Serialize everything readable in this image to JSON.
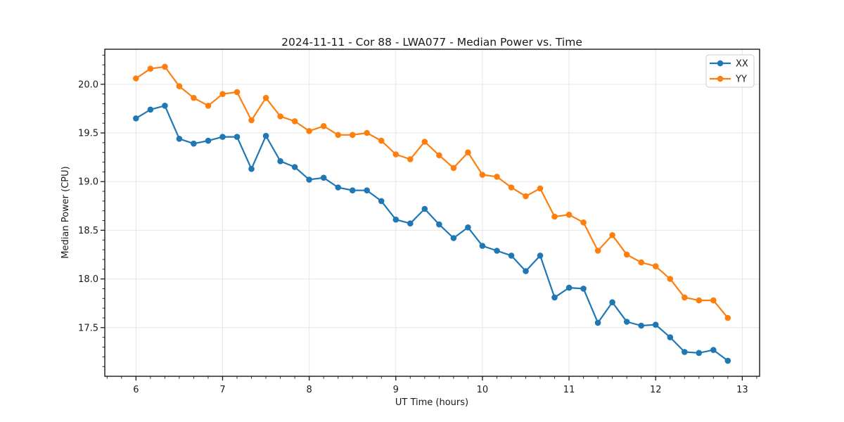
{
  "chart_data": {
    "type": "line",
    "title": "2024-11-11 - Cor 88 - LWA077 - Median Power vs. Time",
    "xlabel": "UT Time (hours)",
    "ylabel": "Median Power (CPU)",
    "legend_position": "upper right",
    "grid": true,
    "xlim": [
      5.64,
      13.2
    ],
    "ylim": [
      17.0,
      20.36
    ],
    "xticks": [
      6,
      7,
      8,
      9,
      10,
      11,
      12,
      13
    ],
    "xtick_labels": [
      "6",
      "7",
      "8",
      "9",
      "10",
      "11",
      "12",
      "13"
    ],
    "yticks": [
      17.5,
      18.0,
      18.5,
      19.0,
      19.5,
      20.0
    ],
    "ytick_labels": [
      "17.5",
      "18.0",
      "18.5",
      "19.0",
      "19.5",
      "20.0"
    ],
    "x_minor_step": 0.1667,
    "y_minor_step": 0.1,
    "x": [
      6,
      6.1667,
      6.3333,
      6.5,
      6.6667,
      6.8333,
      7,
      7.1667,
      7.3333,
      7.5,
      7.6667,
      7.8333,
      8,
      8.1667,
      8.3333,
      8.5,
      8.6667,
      8.8333,
      9,
      9.1667,
      9.3333,
      9.5,
      9.6667,
      9.8333,
      10,
      10.1667,
      10.3333,
      10.5,
      10.6667,
      10.8333,
      11,
      11.1667,
      11.3333,
      11.5,
      11.6667,
      11.8333,
      12,
      12.1667,
      12.3333,
      12.5,
      12.6667,
      12.8333
    ],
    "series": [
      {
        "name": "XX",
        "color": "#1f77b4",
        "values": [
          19.65,
          19.74,
          19.78,
          19.44,
          19.39,
          19.42,
          19.46,
          19.46,
          19.13,
          19.47,
          19.21,
          19.15,
          19.02,
          19.04,
          18.94,
          18.91,
          18.91,
          18.8,
          18.61,
          18.57,
          18.72,
          18.56,
          18.42,
          18.53,
          18.34,
          18.29,
          18.24,
          18.08,
          18.24,
          17.81,
          17.91,
          17.9,
          17.55,
          17.76,
          17.56,
          17.52,
          17.53,
          17.4,
          17.25,
          17.24,
          17.27,
          17.16
        ]
      },
      {
        "name": "YY",
        "color": "#ff7f0e",
        "values": [
          20.06,
          20.16,
          20.18,
          19.98,
          19.86,
          19.78,
          19.9,
          19.92,
          19.63,
          19.86,
          19.67,
          19.62,
          19.52,
          19.57,
          19.48,
          19.48,
          19.5,
          19.42,
          19.28,
          19.23,
          19.41,
          19.27,
          19.14,
          19.3,
          19.07,
          19.05,
          18.94,
          18.85,
          18.93,
          18.64,
          18.66,
          18.58,
          18.29,
          18.45,
          18.25,
          18.17,
          18.13,
          18.0,
          17.81,
          17.78,
          17.78,
          17.6
        ]
      }
    ],
    "style": {
      "background": "#ffffff",
      "grid_color": "#e6e6e6",
      "axis_color": "#1a1a1a",
      "text_color": "#1a1a1a",
      "legend_border": "#cccccc"
    }
  }
}
